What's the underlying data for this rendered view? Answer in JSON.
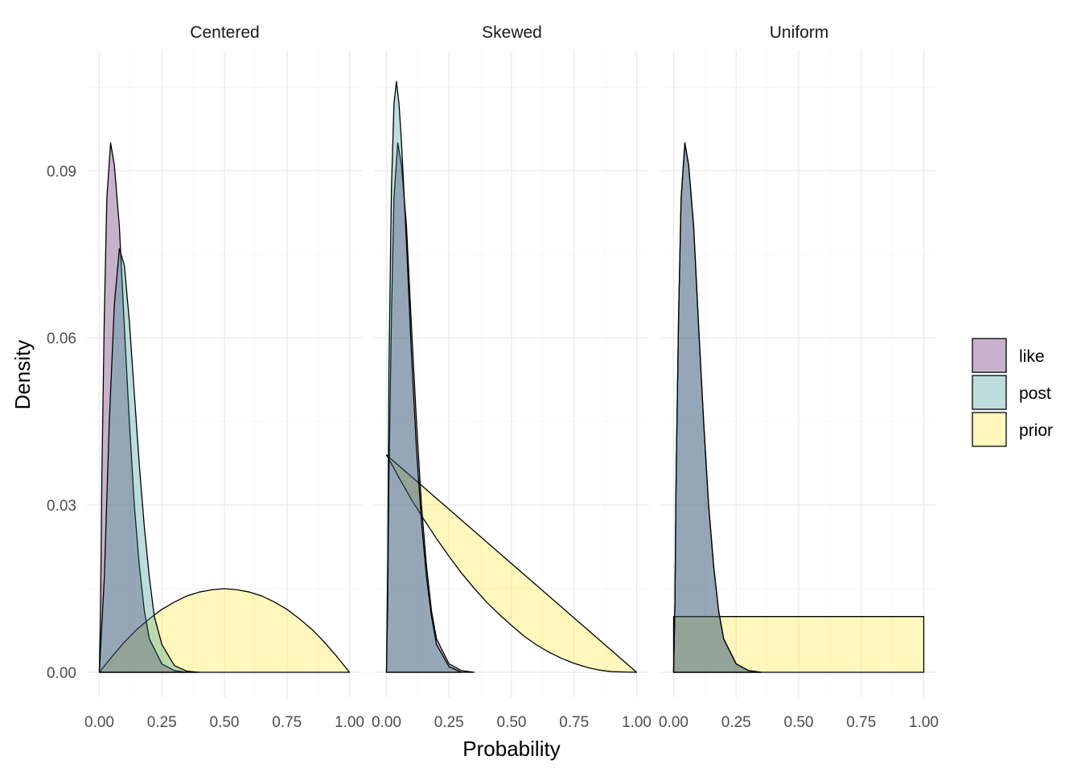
{
  "chart_data": {
    "type": "area",
    "title": "",
    "xlabel": "Probability",
    "ylabel": "Density",
    "xlim": [
      0,
      1
    ],
    "ylim": [
      0,
      0.108
    ],
    "x_ticks": [
      "0.00",
      "0.25",
      "0.50",
      "0.75",
      "1.00"
    ],
    "y_ticks": [
      "0.00",
      "0.03",
      "0.06",
      "0.09"
    ],
    "grid": true,
    "legend_position": "right",
    "legend": [
      {
        "name": "like",
        "color": "#440154"
      },
      {
        "name": "post",
        "color": "#21908C"
      },
      {
        "name": "prior",
        "color": "#FDE725"
      }
    ],
    "series_colors": {
      "like": "#440154",
      "post": "#21908C",
      "prior": "#FDE725"
    },
    "panels": [
      {
        "label": "Centered",
        "series": [
          {
            "name": "prior",
            "points": [
              [
                0,
                0
              ],
              [
                0.05,
                0.0028
              ],
              [
                0.1,
                0.0054
              ],
              [
                0.15,
                0.0077
              ],
              [
                0.2,
                0.0096
              ],
              [
                0.25,
                0.0113
              ],
              [
                0.3,
                0.0126
              ],
              [
                0.35,
                0.0137
              ],
              [
                0.4,
                0.0144
              ],
              [
                0.45,
                0.0148
              ],
              [
                0.5,
                0.015
              ],
              [
                0.55,
                0.0148
              ],
              [
                0.6,
                0.0144
              ],
              [
                0.65,
                0.0137
              ],
              [
                0.7,
                0.0126
              ],
              [
                0.75,
                0.0113
              ],
              [
                0.8,
                0.0096
              ],
              [
                0.85,
                0.0077
              ],
              [
                0.9,
                0.0054
              ],
              [
                0.95,
                0.0028
              ],
              [
                1.0,
                0
              ]
            ]
          },
          {
            "name": "like",
            "points": [
              [
                0,
                0
              ],
              [
                0.005,
                0.012
              ],
              [
                0.01,
                0.035
              ],
              [
                0.02,
                0.064
              ],
              [
                0.03,
                0.085
              ],
              [
                0.045,
                0.095
              ],
              [
                0.06,
                0.091
              ],
              [
                0.08,
                0.08
              ],
              [
                0.1,
                0.062
              ],
              [
                0.12,
                0.045
              ],
              [
                0.14,
                0.03
              ],
              [
                0.16,
                0.019
              ],
              [
                0.18,
                0.011
              ],
              [
                0.2,
                0.006
              ],
              [
                0.25,
                0.0015
              ],
              [
                0.3,
                0.0003
              ],
              [
                0.35,
                0
              ]
            ]
          },
          {
            "name": "post",
            "points": [
              [
                0,
                0
              ],
              [
                0.02,
                0.017
              ],
              [
                0.04,
                0.045
              ],
              [
                0.06,
                0.066
              ],
              [
                0.08,
                0.076
              ],
              [
                0.1,
                0.073
              ],
              [
                0.12,
                0.063
              ],
              [
                0.14,
                0.05
              ],
              [
                0.16,
                0.037
              ],
              [
                0.18,
                0.026
              ],
              [
                0.2,
                0.017
              ],
              [
                0.22,
                0.01
              ],
              [
                0.25,
                0.005
              ],
              [
                0.3,
                0.0012
              ],
              [
                0.35,
                0.0002
              ],
              [
                0.4,
                0
              ]
            ]
          }
        ]
      },
      {
        "label": "Skewed",
        "series": [
          {
            "name": "prior",
            "points": [
              [
                0,
                0.039
              ],
              [
                0.05,
                0.0349
              ],
              [
                0.1,
                0.031
              ],
              [
                0.15,
                0.0274
              ],
              [
                0.2,
                0.024
              ],
              [
                0.25,
                0.0208
              ],
              [
                0.3,
                0.0178
              ],
              [
                0.35,
                0.0151
              ],
              [
                0.4,
                0.0126
              ],
              [
                0.45,
                0.0104
              ],
              [
                0.5,
                0.0084
              ],
              [
                0.55,
                0.0065
              ],
              [
                0.6,
                0.0049
              ],
              [
                0.65,
                0.0036
              ],
              [
                0.7,
                0.0025
              ],
              [
                0.75,
                0.0016
              ],
              [
                0.8,
                0.0009
              ],
              [
                0.85,
                0.0004
              ],
              [
                0.9,
                0.0001
              ],
              [
                1.0,
                0
              ]
            ]
          },
          {
            "name": "like",
            "points": [
              [
                0,
                0
              ],
              [
                0.005,
                0.012
              ],
              [
                0.01,
                0.035
              ],
              [
                0.02,
                0.064
              ],
              [
                0.03,
                0.085
              ],
              [
                0.045,
                0.095
              ],
              [
                0.06,
                0.091
              ],
              [
                0.08,
                0.08
              ],
              [
                0.1,
                0.062
              ],
              [
                0.12,
                0.045
              ],
              [
                0.14,
                0.03
              ],
              [
                0.16,
                0.019
              ],
              [
                0.18,
                0.011
              ],
              [
                0.2,
                0.006
              ],
              [
                0.25,
                0.0015
              ],
              [
                0.3,
                0.0003
              ],
              [
                0.35,
                0
              ]
            ]
          },
          {
            "name": "post",
            "points": [
              [
                0,
                0
              ],
              [
                0.005,
                0.02
              ],
              [
                0.01,
                0.055
              ],
              [
                0.02,
                0.087
              ],
              [
                0.03,
                0.102
              ],
              [
                0.04,
                0.106
              ],
              [
                0.05,
                0.102
              ],
              [
                0.06,
                0.095
              ],
              [
                0.08,
                0.077
              ],
              [
                0.1,
                0.057
              ],
              [
                0.12,
                0.04
              ],
              [
                0.14,
                0.027
              ],
              [
                0.16,
                0.017
              ],
              [
                0.18,
                0.01
              ],
              [
                0.2,
                0.005
              ],
              [
                0.25,
                0.001
              ],
              [
                0.3,
                0
              ]
            ]
          }
        ]
      },
      {
        "label": "Uniform",
        "series": [
          {
            "name": "prior",
            "points": [
              [
                0,
                0
              ],
              [
                0,
                0.01
              ],
              [
                1,
                0.01
              ],
              [
                1,
                0
              ]
            ]
          },
          {
            "name": "like",
            "points": [
              [
                0,
                0
              ],
              [
                0.005,
                0.012
              ],
              [
                0.01,
                0.035
              ],
              [
                0.02,
                0.064
              ],
              [
                0.03,
                0.085
              ],
              [
                0.045,
                0.095
              ],
              [
                0.06,
                0.091
              ],
              [
                0.08,
                0.08
              ],
              [
                0.1,
                0.062
              ],
              [
                0.12,
                0.045
              ],
              [
                0.14,
                0.03
              ],
              [
                0.16,
                0.019
              ],
              [
                0.18,
                0.011
              ],
              [
                0.2,
                0.006
              ],
              [
                0.25,
                0.0015
              ],
              [
                0.3,
                0.0003
              ],
              [
                0.35,
                0
              ]
            ]
          },
          {
            "name": "post",
            "points": [
              [
                0,
                0
              ],
              [
                0.005,
                0.012
              ],
              [
                0.01,
                0.035
              ],
              [
                0.02,
                0.064
              ],
              [
                0.03,
                0.085
              ],
              [
                0.045,
                0.095
              ],
              [
                0.06,
                0.091
              ],
              [
                0.08,
                0.08
              ],
              [
                0.1,
                0.062
              ],
              [
                0.12,
                0.045
              ],
              [
                0.14,
                0.03
              ],
              [
                0.16,
                0.019
              ],
              [
                0.18,
                0.011
              ],
              [
                0.2,
                0.006
              ],
              [
                0.25,
                0.0015
              ],
              [
                0.3,
                0.0003
              ],
              [
                0.35,
                0
              ]
            ]
          }
        ]
      }
    ]
  }
}
